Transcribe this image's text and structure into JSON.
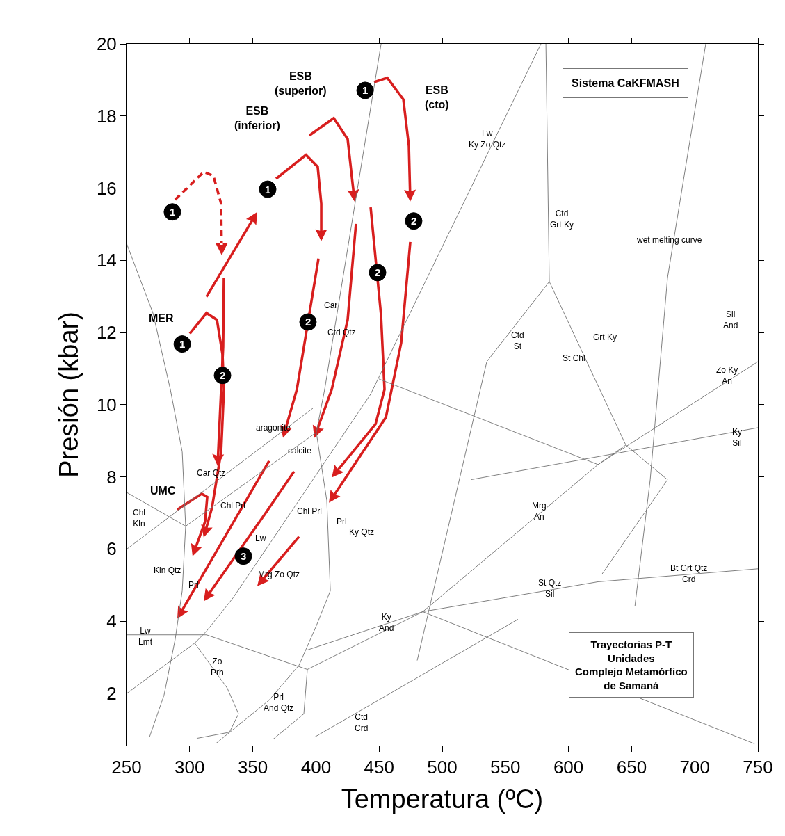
{
  "chart_data": {
    "type": "line",
    "title": "Sistema CaKFMASH",
    "subtitle": "Trayectorias P-T\nUnidades\nComplejo Metamórfico\nde Samaná",
    "xlabel": "Temperatura (ºC)",
    "ylabel": "Presión (kbar)",
    "xlim": [
      250,
      750
    ],
    "xticks": [
      250,
      300,
      350,
      400,
      450,
      500,
      550,
      600,
      650,
      700,
      750
    ],
    "ylim": [
      0.55,
      20
    ],
    "yticks": [
      2,
      4,
      6,
      8,
      10,
      12,
      14,
      16,
      18,
      20
    ],
    "series": [
      {
        "color": "#707070",
        "x": [
          250,
          270.9,
          284.7,
          294.1,
          296.8,
          294.1,
          288.5,
          279.7,
          268.2
        ],
        "values": [
          14.47,
          12.54,
          10.42,
          8.69,
          6.63,
          4.84,
          3.49,
          1.95,
          0.79
        ]
      },
      {
        "color": "#707070",
        "x": [
          250,
          296.8,
          400.3
        ],
        "values": [
          7.57,
          6.63,
          9.23
        ]
      },
      {
        "color": "#707070",
        "x": [
          250,
          397.6
        ],
        "values": [
          5.99,
          9.9
        ]
      },
      {
        "color": "#707070",
        "x": [
          250,
          313.3,
          393.2
        ],
        "values": [
          3.62,
          3.62,
          2.66
        ]
      },
      {
        "color": "#707070",
        "x": [
          451.6,
          406.9,
          400.3,
          408.6,
          411.4,
          400.3,
          386.6,
          362.9,
          320.5
        ],
        "values": [
          20,
          10.42,
          9.23,
          7.34,
          4.84,
          3.87,
          2.78,
          1.81,
          0.6
        ]
      },
      {
        "color": "#707070",
        "x": [
          393.2,
          390.4,
          366.2
        ],
        "values": [
          2.66,
          1.43,
          0.73
        ]
      },
      {
        "color": "#707070",
        "x": [
          250,
          304.0,
          313.3,
          334.3,
          443.3,
          578.2
        ],
        "values": [
          1.99,
          3.39,
          3.72,
          4.64,
          10.29,
          20
        ]
      },
      {
        "color": "#707070",
        "x": [
          304.0,
          329.8,
          338.7,
          331.5,
          305.6
        ],
        "values": [
          3.39,
          2.14,
          1.43,
          0.92,
          0.75
        ]
      },
      {
        "color": "#707070",
        "x": [
          393.2,
          484.6,
          623.4,
          750
        ],
        "values": [
          3.2,
          4.26,
          8.34,
          11.19
        ]
      },
      {
        "color": "#707070",
        "x": [
          393.2,
          484.6,
          623.4,
          750
        ],
        "values": [
          2.66,
          4.26,
          5.09,
          5.45
        ]
      },
      {
        "color": "#707070",
        "x": [
          522.6,
          750
        ],
        "values": [
          7.92,
          9.36
        ]
      },
      {
        "color": "#707070",
        "x": [
          449.9,
          623.4,
          645.4,
          678.4
        ],
        "values": [
          10.71,
          8.34,
          8.88,
          7.92
        ]
      },
      {
        "color": "#707070",
        "x": [
          582.1,
          584.8,
          645.4
        ],
        "values": [
          20,
          13.41,
          8.88
        ]
      },
      {
        "color": "#707070",
        "x": [
          584.8,
          535.3,
          480.2
        ],
        "values": [
          13.41,
          11.19,
          2.91
        ]
      },
      {
        "color": "#707070",
        "x": [
          708.7,
          678.4,
          664.7,
          652.6
        ],
        "values": [
          20,
          13.51,
          7.92,
          4.41
        ]
      },
      {
        "color": "#707070",
        "x": [
          626.5,
          678.4
        ],
        "values": [
          5.3,
          7.92
        ]
      },
      {
        "color": "#707070",
        "x": [
          399.2,
          560
        ],
        "values": [
          0.79,
          4.05
        ]
      },
      {
        "color": "#707070",
        "x": [
          484.6,
          747.3
        ],
        "values": [
          4.26,
          0.6
        ]
      }
    ],
    "annotations": [
      "1",
      "1",
      "1",
      "1",
      "2",
      "2",
      "2",
      "2",
      "3",
      "MER",
      "UMC",
      "ESB\n(inferior)",
      "ESB\n(superior)",
      "ESB\n(cto)",
      "Lw\nKy Zo Qtz",
      "Car",
      "Ctd Qtz",
      "Ctd\nGrt Ky",
      "wet melting curve",
      "Sil\nAnd",
      "Ctd\nSt",
      "St Chl",
      "Grt Ky",
      "Zo Ky\nAn",
      "Ky\nSil",
      "Mrg\nAn",
      "Bt Grt Qtz\nCrd",
      "St Qtz\nSil",
      "Ky\nAnd",
      "Ctd\nCrd",
      "Prl\nAnd Qtz",
      "Zo\nPrh",
      "Lw\nLmt",
      "Kln Qtz",
      "Prl",
      "Lw",
      "Mrg Zo Qtz",
      "Chl Prl",
      "Prl",
      "Ky Qtz",
      "Chl Prl",
      "Car Qtz",
      "aragonite",
      "calcite",
      "Chl\nKln"
    ]
  }
}
